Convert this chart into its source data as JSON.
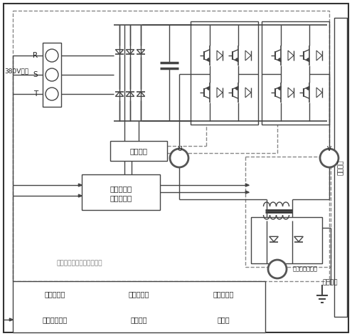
{
  "bg_color": "#ffffff",
  "lc": "#444444",
  "dc": "#888888",
  "text_380V": "380V电源",
  "text_R": "R",
  "text_S": "S",
  "text_T": "T",
  "text_power_drive": "电源驱动",
  "text_smart": "智能处理器\n（单片机）",
  "text_inverter_label": "逃变电阶焊控制器原理框图",
  "text_U": "U",
  "text_V": "V",
  "text_secondary_ct": "次级电流互感器",
  "text_welding": "焊接工件",
  "text_right": "控制单元",
  "table_row1": [
    "压力传感器",
    "位移传感器",
    "温度传感器"
  ],
  "table_row2": [
    "手持式编程器",
    "无线终端",
    "显示器"
  ]
}
